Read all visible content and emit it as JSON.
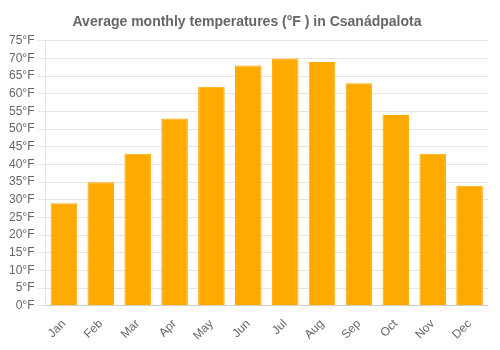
{
  "chart_data": {
    "type": "bar",
    "title": "Average monthly temperatures (°F ) in Csanádpalota",
    "categories": [
      "Jan",
      "Feb",
      "Mar",
      "Apr",
      "May",
      "Jun",
      "Jul",
      "Aug",
      "Sep",
      "Oct",
      "Nov",
      "Dec"
    ],
    "values": [
      29,
      35,
      43,
      53,
      62,
      68,
      70,
      69,
      63,
      54,
      43,
      34
    ],
    "color": "#FFAA00",
    "ylim": [
      0,
      75
    ],
    "yticks": [
      {
        "value": 0,
        "label": "0°F"
      },
      {
        "value": 5,
        "label": "5°F"
      },
      {
        "value": 10,
        "label": "10°F"
      },
      {
        "value": 15,
        "label": "15°F"
      },
      {
        "value": 20,
        "label": "20°F"
      },
      {
        "value": 25,
        "label": "25°F"
      },
      {
        "value": 30,
        "label": "30°F"
      },
      {
        "value": 35,
        "label": "35°F"
      },
      {
        "value": 40,
        "label": "40°F"
      },
      {
        "value": 45,
        "label": "45°F"
      },
      {
        "value": 50,
        "label": "50°F"
      },
      {
        "value": 55,
        "label": "55°F"
      },
      {
        "value": 60,
        "label": "60°F"
      },
      {
        "value": 65,
        "label": "65°F"
      },
      {
        "value": 70,
        "label": "70°F"
      },
      {
        "value": 75,
        "label": "75°F"
      }
    ],
    "grid": true
  }
}
